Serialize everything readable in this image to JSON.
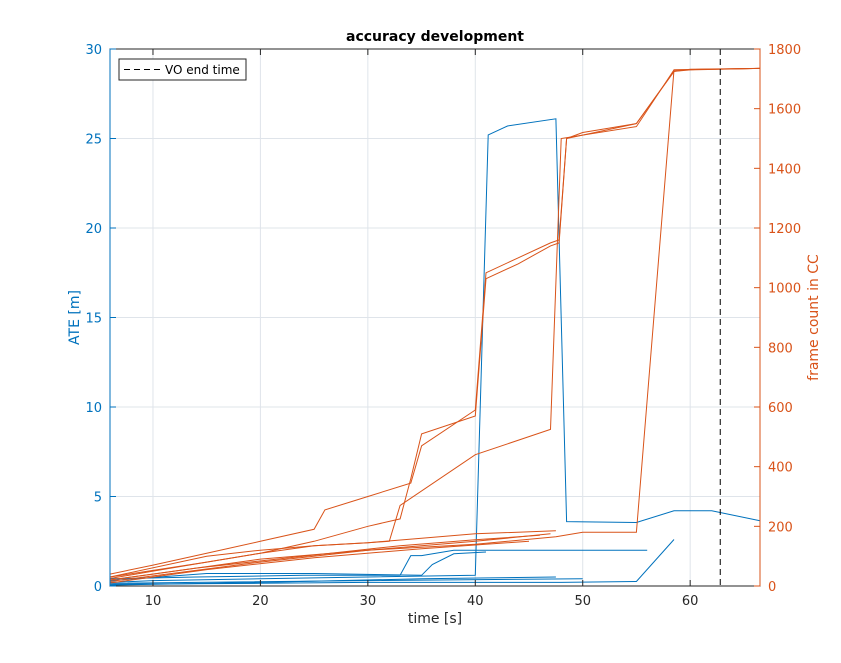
{
  "chart_data": {
    "type": "line",
    "title": "accuracy development",
    "xlabel": "time [s]",
    "ylabel_left": "ATE [m]",
    "ylabel_right": "frame count in CC",
    "xlim": [
      6,
      66.5
    ],
    "ylim_left": [
      0,
      30
    ],
    "ylim_right": [
      0,
      1800
    ],
    "xticks": [
      10,
      20,
      30,
      40,
      50,
      60
    ],
    "yticks_left": [
      0,
      5,
      10,
      15,
      20,
      25,
      30
    ],
    "yticks_right": [
      0,
      200,
      400,
      600,
      800,
      1000,
      1200,
      1400,
      1600,
      1800
    ],
    "grid": true,
    "legend": {
      "location": "top-left",
      "entries": [
        "VO end time"
      ]
    },
    "vline": {
      "x": 62.8,
      "style": "dashed",
      "color": "#000000",
      "label": "VO end time"
    },
    "colors": {
      "left_axis": "#0072BD",
      "right_axis": "#D95319",
      "grid": "#dfe4ea",
      "axis_text": "#262626"
    },
    "series_left": [
      {
        "x": [
          6,
          10,
          20,
          30,
          40,
          41.2,
          43,
          47.5,
          48.5,
          55,
          58.5,
          62,
          66.5
        ],
        "y": [
          0.2,
          0.3,
          0.4,
          0.5,
          0.6,
          25.2,
          25.7,
          26.1,
          3.6,
          3.55,
          4.2,
          4.2,
          3.65
        ]
      },
      {
        "x": [
          6,
          14,
          24,
          33,
          34,
          35,
          38,
          40.7,
          48,
          56
        ],
        "y": [
          0.4,
          0.5,
          0.6,
          0.6,
          1.7,
          1.7,
          2.0,
          2.0,
          2.0,
          2.0
        ]
      },
      {
        "x": [
          6,
          15,
          25,
          35,
          36,
          38,
          41
        ],
        "y": [
          0.3,
          0.7,
          0.7,
          0.6,
          1.2,
          1.8,
          1.9
        ]
      },
      {
        "x": [
          6,
          20,
          30,
          40,
          48,
          55,
          58.5
        ],
        "y": [
          0.1,
          0.15,
          0.2,
          0.2,
          0.2,
          0.25,
          2.6
        ]
      },
      {
        "x": [
          6,
          20,
          35,
          47.5
        ],
        "y": [
          0.05,
          0.2,
          0.4,
          0.5
        ]
      },
      {
        "x": [
          6,
          30,
          50
        ],
        "y": [
          0.15,
          0.3,
          0.4
        ]
      }
    ],
    "series_right": [
      {
        "x": [
          6,
          10,
          15,
          20,
          25,
          26,
          30,
          34,
          35,
          40,
          41,
          44,
          47,
          47.8,
          48.5,
          50,
          55,
          58.5,
          60,
          66.5
        ],
        "y": [
          40,
          70,
          110,
          150,
          190,
          255,
          300,
          345,
          470,
          590,
          1050,
          1100,
          1150,
          1160,
          1500,
          1520,
          1550,
          1725,
          1732,
          1735
        ]
      },
      {
        "x": [
          6,
          15,
          20,
          25,
          30,
          33,
          34,
          35,
          40,
          41,
          44,
          47,
          47.8,
          48.5,
          55,
          58.5,
          60,
          66.5
        ],
        "y": [
          30,
          80,
          110,
          150,
          200,
          225,
          360,
          510,
          570,
          1030,
          1080,
          1140,
          1150,
          1500,
          1550,
          1725,
          1730,
          1735
        ]
      },
      {
        "x": [
          6,
          15,
          20,
          25,
          30,
          32,
          33,
          40,
          47,
          48,
          55,
          58.5,
          66.5
        ],
        "y": [
          30,
          100,
          120,
          135,
          145,
          150,
          270,
          440,
          525,
          1500,
          1540,
          1730,
          1735
        ]
      },
      {
        "x": [
          6,
          10,
          15,
          20,
          25,
          30,
          35,
          40,
          47.5
        ],
        "y": [
          25,
          50,
          80,
          110,
          135,
          145,
          160,
          175,
          185
        ]
      },
      {
        "x": [
          6,
          10,
          20,
          30,
          40,
          47.5,
          50,
          55,
          58.5,
          66.5
        ],
        "y": [
          20,
          40,
          90,
          120,
          140,
          165,
          180,
          180,
          1730,
          1735
        ]
      },
      {
        "x": [
          6,
          20,
          30,
          40,
          47
        ],
        "y": [
          15,
          80,
          120,
          150,
          175
        ]
      },
      {
        "x": [
          6,
          14,
          24,
          33,
          40,
          46
        ],
        "y": [
          20,
          60,
          100,
          135,
          155,
          170
        ]
      },
      {
        "x": [
          6,
          15,
          25,
          35,
          45
        ],
        "y": [
          10,
          55,
          95,
          125,
          150
        ]
      }
    ]
  }
}
